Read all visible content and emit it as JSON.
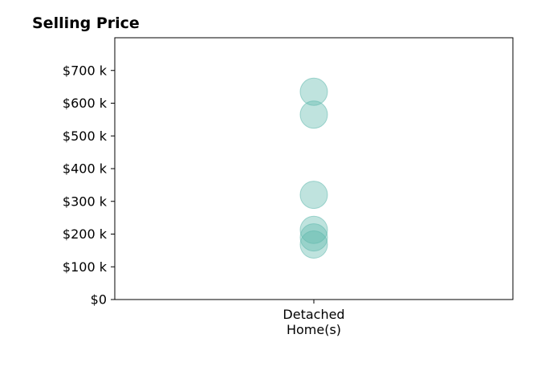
{
  "chart_data": {
    "type": "scatter",
    "title": "Selling Price",
    "xlabel": "",
    "ylabel": "",
    "categories": [
      "Detached\nHome(s)"
    ],
    "series": [
      {
        "category": "Detached\nHome(s)",
        "values": [
          635000,
          565000,
          320000,
          213000,
          190000,
          168000
        ]
      }
    ],
    "ylim": [
      0,
      800000
    ],
    "yticks": [
      0,
      100000,
      200000,
      300000,
      400000,
      500000,
      600000,
      700000
    ],
    "ytick_labels": [
      "$0",
      "$100 k",
      "$200 k",
      "$300 k",
      "$400 k",
      "$500 k",
      "$600 k",
      "$700 k"
    ],
    "grid": false,
    "legend": "none",
    "marker_color": "#5fb8ad",
    "marker_opacity": 0.4
  }
}
